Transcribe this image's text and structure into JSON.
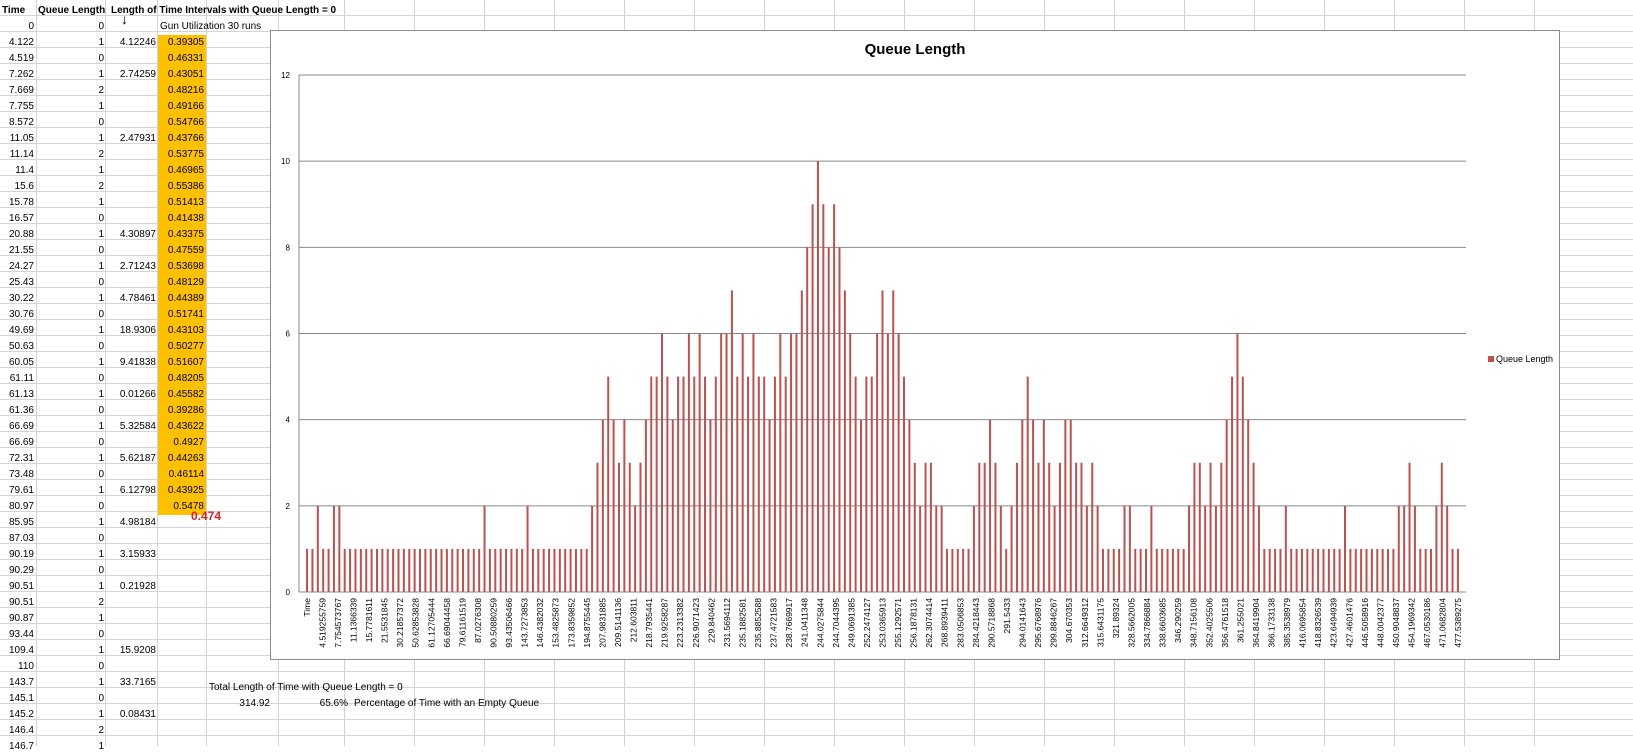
{
  "headers": {
    "time": "Time",
    "queue_length": "Queue Length",
    "interval_title": "Length of Time Intervals with Queue Length = 0"
  },
  "gun_label": "Gun Utilization 30 runs",
  "rows": [
    {
      "time": "0",
      "q": "0",
      "len": ""
    },
    {
      "time": "4.122",
      "q": "1",
      "len": "4.12246"
    },
    {
      "time": "4.519",
      "q": "0",
      "len": ""
    },
    {
      "time": "7.262",
      "q": "1",
      "len": "2.74259"
    },
    {
      "time": "7.669",
      "q": "2",
      "len": ""
    },
    {
      "time": "7.755",
      "q": "1",
      "len": ""
    },
    {
      "time": "8.572",
      "q": "0",
      "len": ""
    },
    {
      "time": "11.05",
      "q": "1",
      "len": "2.47931"
    },
    {
      "time": "11.14",
      "q": "2",
      "len": ""
    },
    {
      "time": "11.4",
      "q": "1",
      "len": ""
    },
    {
      "time": "15.6",
      "q": "2",
      "len": ""
    },
    {
      "time": "15.78",
      "q": "1",
      "len": ""
    },
    {
      "time": "16.57",
      "q": "0",
      "len": ""
    },
    {
      "time": "20.88",
      "q": "1",
      "len": "4.30897"
    },
    {
      "time": "21.55",
      "q": "0",
      "len": ""
    },
    {
      "time": "24.27",
      "q": "1",
      "len": "2.71243"
    },
    {
      "time": "25.43",
      "q": "0",
      "len": ""
    },
    {
      "time": "30.22",
      "q": "1",
      "len": "4.78461"
    },
    {
      "time": "30.76",
      "q": "0",
      "len": ""
    },
    {
      "time": "49.69",
      "q": "1",
      "len": "18.9306"
    },
    {
      "time": "50.63",
      "q": "0",
      "len": ""
    },
    {
      "time": "60.05",
      "q": "1",
      "len": "9.41838"
    },
    {
      "time": "61.11",
      "q": "0",
      "len": ""
    },
    {
      "time": "61.13",
      "q": "1",
      "len": "0.01266"
    },
    {
      "time": "61.36",
      "q": "0",
      "len": ""
    },
    {
      "time": "66.69",
      "q": "1",
      "len": "5.32584"
    },
    {
      "time": "66.69",
      "q": "0",
      "len": ""
    },
    {
      "time": "72.31",
      "q": "1",
      "len": "5.62187"
    },
    {
      "time": "73.48",
      "q": "0",
      "len": ""
    },
    {
      "time": "79.61",
      "q": "1",
      "len": "6.12798"
    },
    {
      "time": "80.97",
      "q": "0",
      "len": ""
    },
    {
      "time": "85.95",
      "q": "1",
      "len": "4.98184"
    },
    {
      "time": "87.03",
      "q": "0",
      "len": ""
    },
    {
      "time": "90.19",
      "q": "1",
      "len": "3.15933"
    },
    {
      "time": "90.29",
      "q": "0",
      "len": ""
    },
    {
      "time": "90.51",
      "q": "1",
      "len": "0.21928"
    },
    {
      "time": "90.51",
      "q": "2",
      "len": ""
    },
    {
      "time": "90.87",
      "q": "1",
      "len": ""
    },
    {
      "time": "93.44",
      "q": "0",
      "len": ""
    },
    {
      "time": "109.4",
      "q": "1",
      "len": "15.9208"
    },
    {
      "time": "110",
      "q": "0",
      "len": ""
    },
    {
      "time": "143.7",
      "q": "1",
      "len": "33.7165"
    },
    {
      "time": "145.1",
      "q": "0",
      "len": ""
    },
    {
      "time": "145.2",
      "q": "1",
      "len": "0.08431"
    },
    {
      "time": "146.4",
      "q": "2",
      "len": ""
    },
    {
      "time": "146.7",
      "q": "1",
      "len": ""
    }
  ],
  "utilization": [
    "0.39305",
    "0.46331",
    "0.43051",
    "0.48216",
    "0.49166",
    "0.54766",
    "0.43766",
    "0.53775",
    "0.46965",
    "0.55386",
    "0.51413",
    "0.41438",
    "0.43375",
    "0.47559",
    "0.53698",
    "0.48129",
    "0.44389",
    "0.51741",
    "0.43103",
    "0.50277",
    "0.51607",
    "0.48205",
    "0.45582",
    "0.39286",
    "0.43622",
    "0.4927",
    "0.44263",
    "0.46114",
    "0.43925",
    "0.5478"
  ],
  "average_util": "0.474",
  "summary": {
    "total_label": "Total Length of Time with Queue Length = 0",
    "total_value": "314.92",
    "percent_value": "65.6%",
    "percent_label": "Percentage of Time with an Empty Queue"
  },
  "colors": {
    "bar": "#c0504d",
    "highlight": "#ffc000",
    "avg": "#e02020"
  },
  "chart_data": {
    "type": "bar",
    "title": "Queue Length",
    "ylim": [
      0,
      12
    ],
    "yticks": [
      0,
      2,
      4,
      6,
      8,
      10,
      12
    ],
    "grid": true,
    "legend_position": "right",
    "series": [
      {
        "name": "Queue Length",
        "values": [
          1,
          1,
          2,
          1,
          1,
          2,
          2,
          1,
          1,
          1,
          1,
          1,
          1,
          1,
          1,
          1,
          1,
          1,
          1,
          1,
          1,
          1,
          1,
          1,
          1,
          1,
          1,
          1,
          1,
          1,
          1,
          1,
          1,
          2,
          1,
          1,
          1,
          1,
          1,
          1,
          1,
          2,
          1,
          1,
          1,
          1,
          1,
          1,
          1,
          1,
          1,
          1,
          1,
          2,
          3,
          4,
          5,
          4,
          3,
          4,
          3,
          2,
          3,
          4,
          5,
          5,
          6,
          5,
          4,
          5,
          5,
          6,
          5,
          6,
          5,
          4,
          5,
          6,
          6,
          7,
          5,
          6,
          5,
          6,
          5,
          5,
          4,
          5,
          6,
          5,
          6,
          6,
          7,
          8,
          9,
          10,
          9,
          8,
          9,
          8,
          7,
          6,
          5,
          4,
          5,
          5,
          6,
          7,
          6,
          7,
          6,
          5,
          4,
          3,
          2,
          3,
          3,
          2,
          2,
          1,
          1,
          1,
          1,
          1,
          2,
          3,
          3,
          4,
          3,
          2,
          1,
          2,
          3,
          4,
          5,
          4,
          3,
          4,
          3,
          2,
          3,
          4,
          4,
          3,
          3,
          2,
          3,
          2,
          1,
          1,
          1,
          1,
          2,
          2,
          1,
          1,
          1,
          2,
          1,
          1,
          1,
          1,
          1,
          1,
          2,
          3,
          3,
          2,
          3,
          2,
          3,
          4,
          5,
          6,
          5,
          4,
          3,
          2,
          1,
          1,
          1,
          1,
          2,
          1,
          1,
          1,
          1,
          1,
          1,
          1,
          1,
          1,
          1,
          2,
          1,
          1,
          1,
          1,
          1,
          1,
          1,
          1,
          1,
          2,
          2,
          3,
          2,
          1,
          1,
          1,
          2,
          3,
          2,
          1,
          1
        ]
      }
    ],
    "x_tick_labels": [
      "Time",
      "4.519255759",
      "7.754573767",
      "11.1366339",
      "15.7781611",
      "21.5531845",
      "30.21857372",
      "50.62853828",
      "61.12705444",
      "66.69044458",
      "79.61161519",
      "87.0276308",
      "90.50880259",
      "93.43506466",
      "143.7273853",
      "146.4382032",
      "153.4825873",
      "173.8359852",
      "194.8755445",
      "207.9831885",
      "209.5141136",
      "212.603811",
      "218.7935441",
      "219.9258287",
      "223.2313382",
      "226.9071423",
      "229.840462",
      "231.5694112",
      "235.1882581",
      "235.8852588",
      "237.4721583",
      "238.7669917",
      "241.0411348",
      "244.0275844",
      "244.7044395",
      "249.0691385",
      "252.2474127",
      "253.0365913",
      "255.1292571",
      "256.1878131",
      "262.3074414",
      "268.8939411",
      "283.0506853",
      "284.4218443",
      "290.5718868",
      "291.5433",
      "294.0141643",
      "295.6768976",
      "299.8846267",
      "304.670353",
      "312.6649312",
      "315.6431175",
      "321.89324",
      "328.5662005",
      "334.7866884",
      "338.6603685",
      "346.290259",
      "348.7156108",
      "352.4025506",
      "356.4761518",
      "361.255021",
      "364.8419904",
      "366.1733138",
      "385.3538979",
      "416.0695854",
      "418.8326539",
      "423.6494939",
      "427.4601476",
      "446.5058916",
      "448.0042377",
      "450.9048837",
      "454.1969342",
      "467.0530186",
      "471.0682804",
      "477.5389275"
    ]
  }
}
